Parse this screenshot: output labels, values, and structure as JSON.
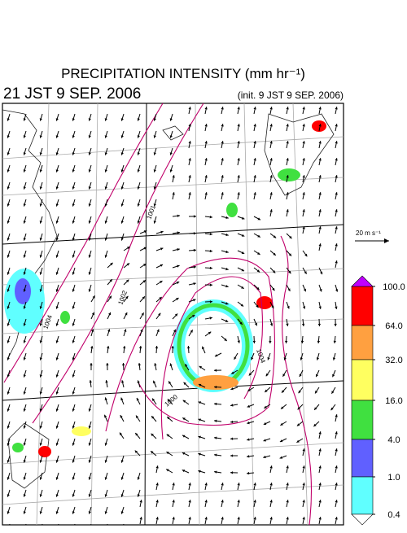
{
  "header": {
    "title": "PRECIPITATION INTENSITY (mm hr⁻¹)",
    "valid_time": "21 JST 9 SEP. 2006",
    "init_time": "(init. 9 JST 9 SEP. 2006)"
  },
  "wind_scale": {
    "label": "20 m s⁻¹"
  },
  "colorbar": {
    "levels": [
      {
        "value": 100,
        "label": "100.0"
      },
      {
        "value": 64,
        "label": "64.0"
      },
      {
        "value": 32,
        "label": "32.0"
      },
      {
        "value": 16,
        "label": "16.0"
      },
      {
        "value": 4,
        "label": "4.0"
      },
      {
        "value": 1,
        "label": "1.0"
      },
      {
        "value": 0.4,
        "label": "0.4"
      }
    ],
    "colors": [
      "#ff0000",
      "#ffa040",
      "#ffff60",
      "#40e040",
      "#6060ff",
      "#60ffff"
    ],
    "over_color": "#c000ff",
    "under_color": "#ffffff"
  },
  "isobars": {
    "labels": [
      "1001",
      "1002",
      "1004",
      "1000",
      "1004"
    ]
  }
}
